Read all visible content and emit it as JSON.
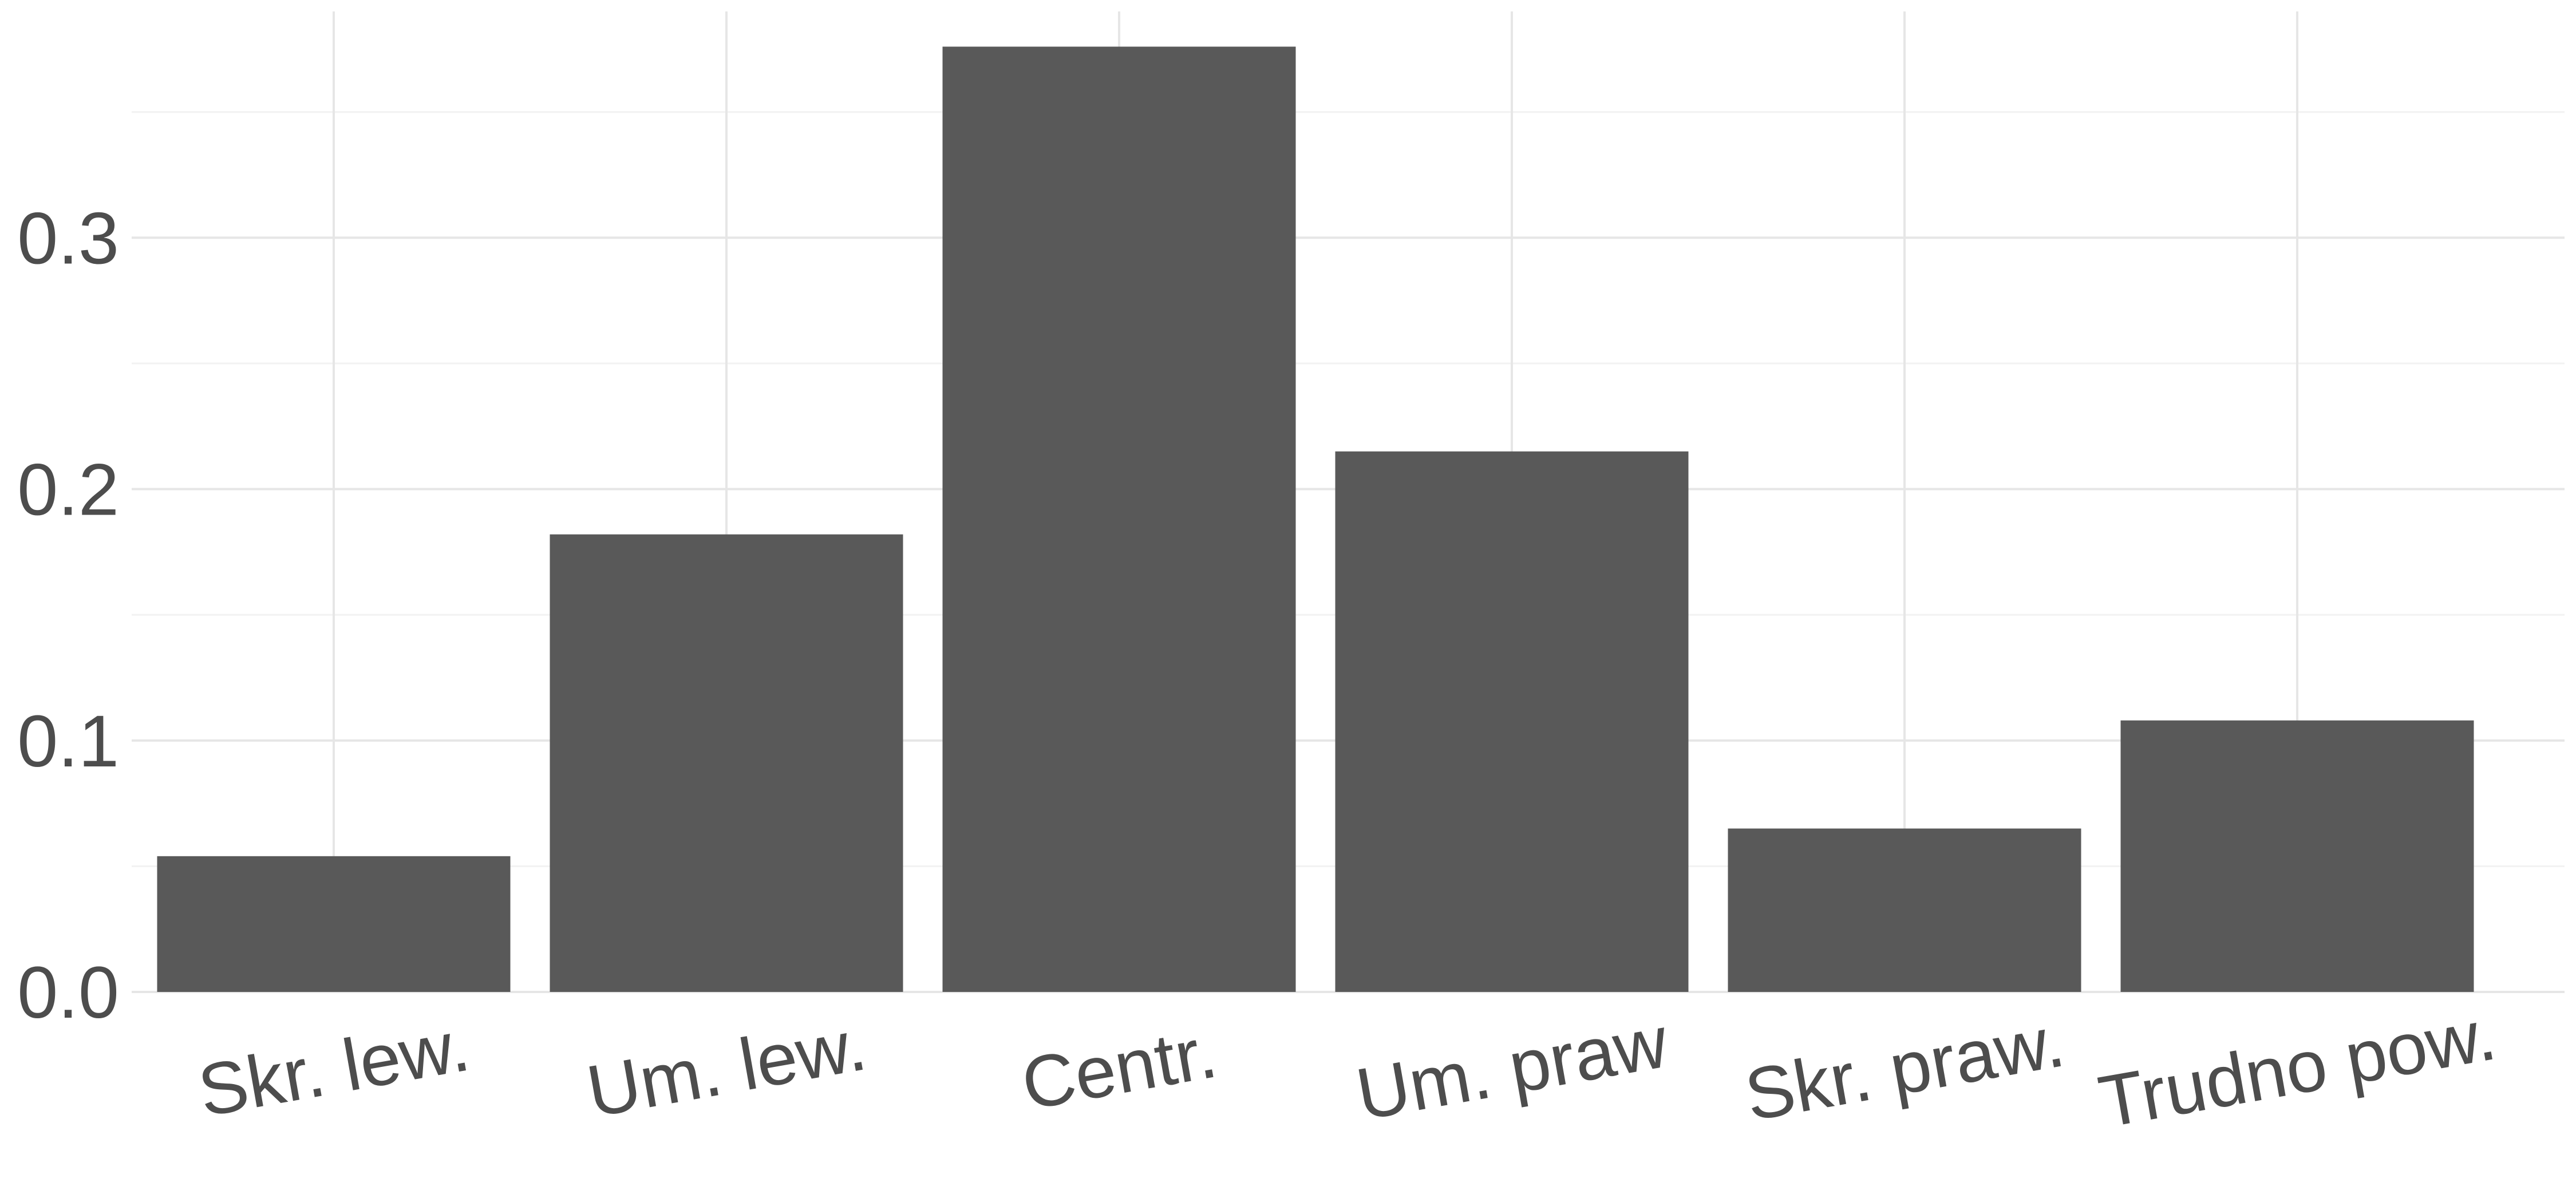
{
  "chart_data": {
    "type": "bar",
    "title": "",
    "xlabel": "",
    "ylabel": "",
    "categories": [
      "Skr. lew.",
      "Um. lew.",
      "Centr.",
      "Um. praw",
      "Skr. praw.",
      "Trudno pow."
    ],
    "values": [
      0.054,
      0.182,
      0.376,
      0.215,
      0.065,
      0.108
    ],
    "ylim": [
      0,
      0.39
    ],
    "yticks": [
      0.0,
      0.1,
      0.2,
      0.3
    ],
    "ytick_labels": [
      "0.0",
      "0.1",
      "0.2",
      "0.3"
    ],
    "yminor": [
      0.05,
      0.15,
      0.25,
      0.35
    ],
    "grid": true,
    "legend": "none",
    "bar_color": "#595959",
    "grid_color": "#e6e6e6",
    "text_color": "#4d4d4d",
    "x_label_rotation_deg": -10
  }
}
